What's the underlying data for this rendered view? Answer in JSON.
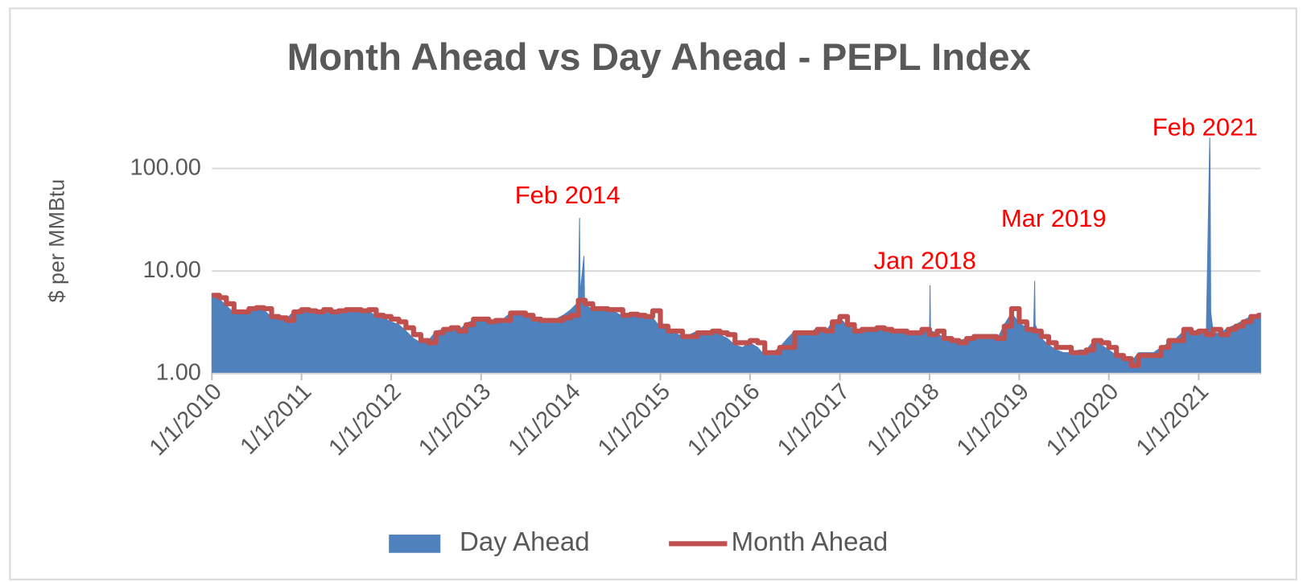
{
  "chart_data": {
    "type": "area-line",
    "title": "Month Ahead vs Day Ahead - PEPL Index",
    "y_label": "$ per MMBtu",
    "log_y": true,
    "grid": true,
    "legend": "bottom",
    "ylim": [
      1,
      300
    ],
    "yticks": [
      {
        "value": 1,
        "label": "1.00"
      },
      {
        "value": 10,
        "label": "10.00"
      },
      {
        "value": 100,
        "label": "100.00"
      }
    ],
    "xlim": [
      "2010-01-01",
      "2021-09-10"
    ],
    "xticks": [
      {
        "value": "2010-01-01",
        "label": "1/1/2010"
      },
      {
        "value": "2011-01-01",
        "label": "1/1/2011"
      },
      {
        "value": "2012-01-01",
        "label": "1/1/2012"
      },
      {
        "value": "2013-01-01",
        "label": "1/1/2013"
      },
      {
        "value": "2014-01-01",
        "label": "1/1/2014"
      },
      {
        "value": "2015-01-01",
        "label": "1/1/2015"
      },
      {
        "value": "2016-01-01",
        "label": "1/1/2016"
      },
      {
        "value": "2017-01-01",
        "label": "1/1/2017"
      },
      {
        "value": "2018-01-01",
        "label": "1/1/2018"
      },
      {
        "value": "2019-01-01",
        "label": "1/1/2019"
      },
      {
        "value": "2020-01-01",
        "label": "1/1/2020"
      },
      {
        "value": "2021-01-01",
        "label": "1/1/2021"
      }
    ],
    "annotations": [
      "Feb 2014",
      "Jan 2018",
      "Mar 2019",
      "Feb 2021"
    ],
    "annotation_color": "#ff0000",
    "series": [
      {
        "name": "Day Ahead",
        "kind": "area",
        "color": "#4f81bd",
        "x": [
          "2010-01-01",
          "2010-02-01",
          "2010-03-01",
          "2010-04-01",
          "2010-05-01",
          "2010-06-01",
          "2010-07-01",
          "2010-08-01",
          "2010-09-01",
          "2010-10-01",
          "2010-11-01",
          "2010-12-01",
          "2011-01-01",
          "2011-02-01",
          "2011-03-01",
          "2011-04-01",
          "2011-05-01",
          "2011-06-01",
          "2011-07-01",
          "2011-08-01",
          "2011-09-01",
          "2011-10-01",
          "2011-11-01",
          "2011-12-01",
          "2012-01-01",
          "2012-02-01",
          "2012-03-01",
          "2012-04-01",
          "2012-05-01",
          "2012-06-01",
          "2012-07-01",
          "2012-08-01",
          "2012-09-01",
          "2012-10-01",
          "2012-11-01",
          "2012-12-01",
          "2013-01-01",
          "2013-02-01",
          "2013-03-01",
          "2013-04-01",
          "2013-05-01",
          "2013-06-01",
          "2013-07-01",
          "2013-08-01",
          "2013-09-01",
          "2013-10-01",
          "2013-11-01",
          "2013-12-01",
          "2014-01-01",
          "2014-02-01",
          "2014-02-06",
          "2014-02-08",
          "2014-02-24",
          "2014-02-26",
          "2014-03-01",
          "2014-04-01",
          "2014-05-01",
          "2014-06-01",
          "2014-07-01",
          "2014-08-01",
          "2014-09-01",
          "2014-10-01",
          "2014-11-01",
          "2014-12-01",
          "2015-01-01",
          "2015-02-01",
          "2015-03-01",
          "2015-04-01",
          "2015-05-01",
          "2015-06-01",
          "2015-07-01",
          "2015-08-01",
          "2015-09-01",
          "2015-10-01",
          "2015-11-01",
          "2015-12-01",
          "2016-01-01",
          "2016-02-01",
          "2016-03-01",
          "2016-04-01",
          "2016-05-01",
          "2016-06-01",
          "2016-07-01",
          "2016-08-01",
          "2016-09-01",
          "2016-10-01",
          "2016-11-01",
          "2016-12-01",
          "2017-01-01",
          "2017-02-01",
          "2017-03-01",
          "2017-04-01",
          "2017-05-01",
          "2017-06-01",
          "2017-07-01",
          "2017-08-01",
          "2017-09-01",
          "2017-10-01",
          "2017-11-01",
          "2017-12-01",
          "2018-01-01",
          "2018-01-03",
          "2018-01-05",
          "2018-02-01",
          "2018-03-01",
          "2018-04-01",
          "2018-05-01",
          "2018-06-01",
          "2018-07-01",
          "2018-08-01",
          "2018-09-01",
          "2018-10-01",
          "2018-11-01",
          "2018-12-01",
          "2019-01-01",
          "2019-02-01",
          "2019-03-01",
          "2019-03-05",
          "2019-03-07",
          "2019-04-01",
          "2019-05-01",
          "2019-06-01",
          "2019-07-01",
          "2019-08-01",
          "2019-09-01",
          "2019-10-01",
          "2019-11-01",
          "2019-12-01",
          "2020-01-01",
          "2020-02-01",
          "2020-03-01",
          "2020-04-01",
          "2020-05-01",
          "2020-06-01",
          "2020-07-01",
          "2020-08-01",
          "2020-09-01",
          "2020-10-01",
          "2020-11-01",
          "2020-12-01",
          "2021-01-01",
          "2021-02-01",
          "2021-02-15",
          "2021-02-16",
          "2021-02-19",
          "2021-03-01",
          "2021-04-01",
          "2021-05-01",
          "2021-06-01",
          "2021-07-01",
          "2021-08-01",
          "2021-09-10"
        ],
        "values": [
          6.0,
          5.3,
          4.6,
          3.9,
          3.9,
          4.2,
          4.5,
          4.2,
          3.5,
          3.4,
          3.4,
          4.1,
          4.3,
          4.0,
          4.0,
          4.2,
          4.0,
          4.1,
          4.3,
          4.1,
          4.0,
          4.1,
          3.6,
          3.5,
          3.2,
          3.0,
          2.6,
          2.2,
          2.0,
          2.1,
          2.6,
          2.7,
          2.7,
          2.6,
          3.1,
          3.3,
          3.3,
          3.2,
          3.3,
          3.4,
          3.9,
          3.8,
          3.6,
          3.4,
          3.3,
          3.3,
          3.4,
          3.7,
          4.2,
          5.0,
          33,
          6.0,
          14,
          5.5,
          4.7,
          4.2,
          4.3,
          4.1,
          4.0,
          3.6,
          3.7,
          3.6,
          3.7,
          3.5,
          2.8,
          2.7,
          2.5,
          2.3,
          2.4,
          2.6,
          2.5,
          2.6,
          2.4,
          2.2,
          1.9,
          1.8,
          2.0,
          1.8,
          1.5,
          1.6,
          1.8,
          2.2,
          2.6,
          2.5,
          2.5,
          2.8,
          2.5,
          3.2,
          3.5,
          2.9,
          2.7,
          2.7,
          2.8,
          2.7,
          2.7,
          2.6,
          2.6,
          2.4,
          2.5,
          2.6,
          2.6,
          7.3,
          2.6,
          2.5,
          2.2,
          2.0,
          2.1,
          2.2,
          2.3,
          2.3,
          2.3,
          2.1,
          3.0,
          3.9,
          3.1,
          2.8,
          2.7,
          8.0,
          3.0,
          2.2,
          1.9,
          1.7,
          1.6,
          1.6,
          1.7,
          1.7,
          2.1,
          1.9,
          1.7,
          1.5,
          1.4,
          1.3,
          1.6,
          1.6,
          1.6,
          1.8,
          2.0,
          2.2,
          2.6,
          2.5,
          2.7,
          2.6,
          200,
          130,
          4.0,
          2.5,
          2.5,
          2.8,
          3.0,
          3.3,
          3.6,
          3.9
        ]
      },
      {
        "name": "Month Ahead",
        "kind": "step",
        "color": "#c0504d",
        "x": [
          "2010-01-01",
          "2010-02-01",
          "2010-03-01",
          "2010-04-01",
          "2010-05-01",
          "2010-06-01",
          "2010-07-01",
          "2010-08-01",
          "2010-09-01",
          "2010-10-01",
          "2010-11-01",
          "2010-12-01",
          "2011-01-01",
          "2011-02-01",
          "2011-03-01",
          "2011-04-01",
          "2011-05-01",
          "2011-06-01",
          "2011-07-01",
          "2011-08-01",
          "2011-09-01",
          "2011-10-01",
          "2011-11-01",
          "2011-12-01",
          "2012-01-01",
          "2012-02-01",
          "2012-03-01",
          "2012-04-01",
          "2012-05-01",
          "2012-06-01",
          "2012-07-01",
          "2012-08-01",
          "2012-09-01",
          "2012-10-01",
          "2012-11-01",
          "2012-12-01",
          "2013-01-01",
          "2013-02-01",
          "2013-03-01",
          "2013-04-01",
          "2013-05-01",
          "2013-06-01",
          "2013-07-01",
          "2013-08-01",
          "2013-09-01",
          "2013-10-01",
          "2013-11-01",
          "2013-12-01",
          "2014-01-01",
          "2014-02-01",
          "2014-03-01",
          "2014-04-01",
          "2014-05-01",
          "2014-06-01",
          "2014-07-01",
          "2014-08-01",
          "2014-09-01",
          "2014-10-01",
          "2014-11-01",
          "2014-12-01",
          "2015-01-01",
          "2015-02-01",
          "2015-03-01",
          "2015-04-01",
          "2015-05-01",
          "2015-06-01",
          "2015-07-01",
          "2015-08-01",
          "2015-09-01",
          "2015-10-01",
          "2015-11-01",
          "2015-12-01",
          "2016-01-01",
          "2016-02-01",
          "2016-03-01",
          "2016-04-01",
          "2016-05-01",
          "2016-06-01",
          "2016-07-01",
          "2016-08-01",
          "2016-09-01",
          "2016-10-01",
          "2016-11-01",
          "2016-12-01",
          "2017-01-01",
          "2017-02-01",
          "2017-03-01",
          "2017-04-01",
          "2017-05-01",
          "2017-06-01",
          "2017-07-01",
          "2017-08-01",
          "2017-09-01",
          "2017-10-01",
          "2017-11-01",
          "2017-12-01",
          "2018-01-01",
          "2018-02-01",
          "2018-03-01",
          "2018-04-01",
          "2018-05-01",
          "2018-06-01",
          "2018-07-01",
          "2018-08-01",
          "2018-09-01",
          "2018-10-01",
          "2018-11-01",
          "2018-12-01",
          "2019-01-01",
          "2019-02-01",
          "2019-03-01",
          "2019-04-01",
          "2019-05-01",
          "2019-06-01",
          "2019-07-01",
          "2019-08-01",
          "2019-09-01",
          "2019-10-01",
          "2019-11-01",
          "2019-12-01",
          "2020-01-01",
          "2020-02-01",
          "2020-03-01",
          "2020-04-01",
          "2020-05-01",
          "2020-06-01",
          "2020-07-01",
          "2020-08-01",
          "2020-09-01",
          "2020-10-01",
          "2020-11-01",
          "2020-12-01",
          "2021-01-01",
          "2021-02-01",
          "2021-03-01",
          "2021-04-01",
          "2021-05-01",
          "2021-06-01",
          "2021-07-01",
          "2021-08-01",
          "2021-09-01"
        ],
        "values": [
          5.8,
          5.5,
          4.8,
          4.0,
          4.0,
          4.3,
          4.4,
          4.3,
          3.6,
          3.5,
          3.3,
          4.0,
          4.2,
          4.1,
          4.0,
          4.2,
          4.0,
          4.1,
          4.2,
          4.2,
          4.1,
          4.2,
          3.7,
          3.6,
          3.4,
          3.2,
          2.8,
          2.4,
          2.1,
          2.0,
          2.5,
          2.7,
          2.8,
          2.6,
          3.0,
          3.4,
          3.4,
          3.2,
          3.3,
          3.3,
          3.9,
          3.9,
          3.7,
          3.4,
          3.3,
          3.3,
          3.3,
          3.5,
          3.7,
          5.2,
          4.8,
          4.3,
          4.3,
          4.2,
          4.2,
          3.7,
          3.8,
          3.7,
          3.6,
          4.1,
          2.9,
          2.6,
          2.6,
          2.3,
          2.3,
          2.5,
          2.5,
          2.6,
          2.5,
          2.4,
          2.0,
          2.0,
          2.1,
          2.0,
          1.6,
          1.6,
          1.8,
          1.8,
          2.5,
          2.5,
          2.5,
          2.7,
          2.6,
          3.2,
          3.6,
          3.0,
          2.6,
          2.7,
          2.7,
          2.8,
          2.7,
          2.6,
          2.6,
          2.5,
          2.5,
          2.7,
          2.4,
          2.6,
          2.2,
          2.1,
          2.0,
          2.2,
          2.3,
          2.3,
          2.3,
          2.2,
          2.9,
          4.3,
          3.2,
          2.7,
          2.6,
          2.3,
          2.0,
          1.8,
          1.8,
          1.6,
          1.6,
          1.7,
          2.1,
          2.0,
          1.8,
          1.5,
          1.4,
          1.2,
          1.5,
          1.5,
          1.5,
          1.8,
          2.1,
          2.1,
          2.7,
          2.5,
          2.6,
          2.4,
          2.7,
          2.4,
          2.7,
          2.9,
          3.2,
          3.6,
          3.7
        ]
      }
    ]
  }
}
